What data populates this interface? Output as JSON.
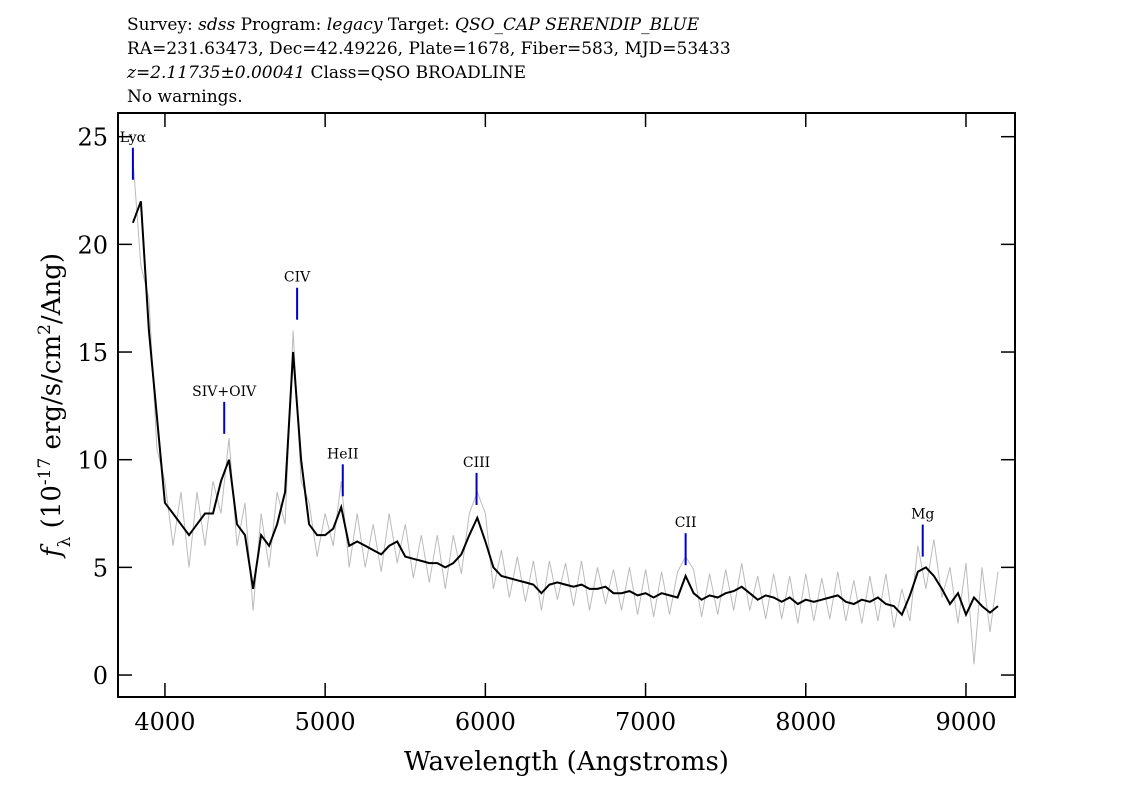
{
  "chart_data": {
    "type": "line",
    "header": [
      [
        {
          "text": "Survey: "
        },
        {
          "text": "sdss",
          "style": "italic"
        },
        {
          "text": " Program: "
        },
        {
          "text": "legacy",
          "style": "italic"
        },
        {
          "text": " Target: "
        },
        {
          "text": "QSO_CAP SERENDIP_BLUE",
          "style": "italic"
        }
      ],
      [
        {
          "text": "RA=231.63473, Dec=42.49226, Plate=1678, Fiber=583, MJD=53433"
        }
      ],
      [
        {
          "text": "z=2.11735±0.00041",
          "style": "italic"
        },
        {
          "text": " Class=QSO BROADLINE"
        }
      ],
      [
        {
          "text": "No warnings."
        }
      ]
    ],
    "x_label": "Wavelength (Angstroms)",
    "y_label": [
      {
        "text": "f",
        "style": "italic"
      },
      {
        "text": "λ",
        "baseline": "sub"
      },
      {
        "text": " (10"
      },
      {
        "text": "-17",
        "baseline": "super"
      },
      {
        "text": " erg/s/cm"
      },
      {
        "text": "2",
        "baseline": "super"
      },
      {
        "text": "/Ang)"
      }
    ],
    "xlim": [
      3707,
      9306
    ],
    "ylim": [
      -1.02,
      26.1
    ],
    "xticks": [
      4000,
      5000,
      6000,
      7000,
      8000,
      9000
    ],
    "yticks": [
      0,
      5,
      10,
      15,
      20,
      25
    ],
    "x": [
      3800,
      3850,
      3900,
      3950,
      4000,
      4050,
      4100,
      4150,
      4200,
      4250,
      4300,
      4350,
      4400,
      4450,
      4500,
      4550,
      4600,
      4650,
      4700,
      4750,
      4800,
      4850,
      4900,
      4950,
      5000,
      5050,
      5100,
      5150,
      5200,
      5250,
      5300,
      5350,
      5400,
      5450,
      5500,
      5550,
      5600,
      5650,
      5700,
      5750,
      5800,
      5850,
      5900,
      5950,
      6000,
      6050,
      6100,
      6150,
      6200,
      6250,
      6300,
      6350,
      6400,
      6450,
      6500,
      6550,
      6600,
      6650,
      6700,
      6750,
      6800,
      6850,
      6900,
      6950,
      7000,
      7050,
      7100,
      7150,
      7200,
      7250,
      7300,
      7350,
      7400,
      7450,
      7500,
      7550,
      7600,
      7650,
      7700,
      7750,
      7800,
      7850,
      7900,
      7950,
      8000,
      8050,
      8100,
      8150,
      8200,
      8250,
      8300,
      8350,
      8400,
      8450,
      8500,
      8550,
      8600,
      8650,
      8700,
      8750,
      8800,
      8850,
      8900,
      8950,
      9000,
      9050,
      9100,
      9150,
      9200
    ],
    "series": [
      {
        "name": "flux",
        "color": "#bbbbbb",
        "width": 1,
        "values": [
          24,
          19,
          17.5,
          10.5,
          9,
          6,
          8.5,
          5,
          8.5,
          6,
          9,
          7.5,
          11,
          6,
          8,
          3,
          7.5,
          5,
          8.5,
          7,
          16,
          9,
          8,
          5.5,
          7.5,
          6,
          9,
          5,
          7.5,
          5,
          7,
          4.8,
          7.5,
          5.2,
          7,
          4.5,
          6.5,
          4.3,
          6.5,
          4,
          6.5,
          4.7,
          7.5,
          8.5,
          7.5,
          4,
          5.8,
          3.6,
          5.5,
          3.4,
          5.3,
          3,
          5.3,
          3.5,
          5.2,
          3.2,
          5.3,
          3,
          5,
          3.3,
          4.9,
          3,
          5,
          2.8,
          4.9,
          2.7,
          4.8,
          2.8,
          4.8,
          5.5,
          4.9,
          2.7,
          4.7,
          2.8,
          4.9,
          3,
          5.2,
          3,
          4.6,
          2.6,
          4.7,
          2.6,
          4.6,
          2.4,
          4.7,
          2.5,
          4.5,
          2.6,
          4.8,
          2.5,
          4.4,
          2.4,
          4.6,
          2.5,
          4.7,
          2.2,
          4,
          2.5,
          6,
          4,
          6.3,
          3.6,
          5,
          2.4,
          5.2,
          0.5,
          5,
          2,
          4.8
        ]
      },
      {
        "name": "smoothed",
        "color": "#000000",
        "width": 2,
        "values": [
          21,
          22,
          16,
          12,
          8,
          7.5,
          7,
          6.5,
          7,
          7.5,
          7.5,
          9,
          10,
          7,
          6.5,
          4,
          6.5,
          6,
          7,
          8.5,
          15,
          10,
          7,
          6.5,
          6.5,
          6.8,
          7.8,
          6,
          6.2,
          6,
          5.8,
          5.6,
          6,
          6.2,
          5.5,
          5.4,
          5.3,
          5.2,
          5.2,
          5,
          5.2,
          5.6,
          6.5,
          7.3,
          6.2,
          5,
          4.6,
          4.5,
          4.4,
          4.3,
          4.2,
          3.8,
          4.2,
          4.3,
          4.2,
          4.1,
          4.2,
          4,
          4,
          4.1,
          3.8,
          3.8,
          3.9,
          3.7,
          3.8,
          3.6,
          3.8,
          3.7,
          3.6,
          4.6,
          3.8,
          3.5,
          3.7,
          3.6,
          3.8,
          3.9,
          4.1,
          3.8,
          3.5,
          3.7,
          3.6,
          3.4,
          3.6,
          3.3,
          3.5,
          3.4,
          3.5,
          3.6,
          3.7,
          3.4,
          3.3,
          3.5,
          3.4,
          3.6,
          3.3,
          3.2,
          2.8,
          3.7,
          4.8,
          5,
          4.6,
          4,
          3.3,
          3.8,
          2.8,
          3.6,
          3.2,
          2.9,
          3.2
        ]
      }
    ],
    "line_marker_color": "#0000cc",
    "lines": [
      {
        "label": "Lyα",
        "x": 3800,
        "y": 23
      },
      {
        "label": "SIV+OIV",
        "x": 4370,
        "y": 11.2
      },
      {
        "label": "CIV",
        "x": 4825,
        "y": 16.5
      },
      {
        "label": "HeII",
        "x": 5110,
        "y": 8.3
      },
      {
        "label": "CIII",
        "x": 5945,
        "y": 7.9
      },
      {
        "label": "CII",
        "x": 7250,
        "y": 5.1
      },
      {
        "label": "Mg",
        "x": 8730,
        "y": 5.5
      }
    ]
  }
}
